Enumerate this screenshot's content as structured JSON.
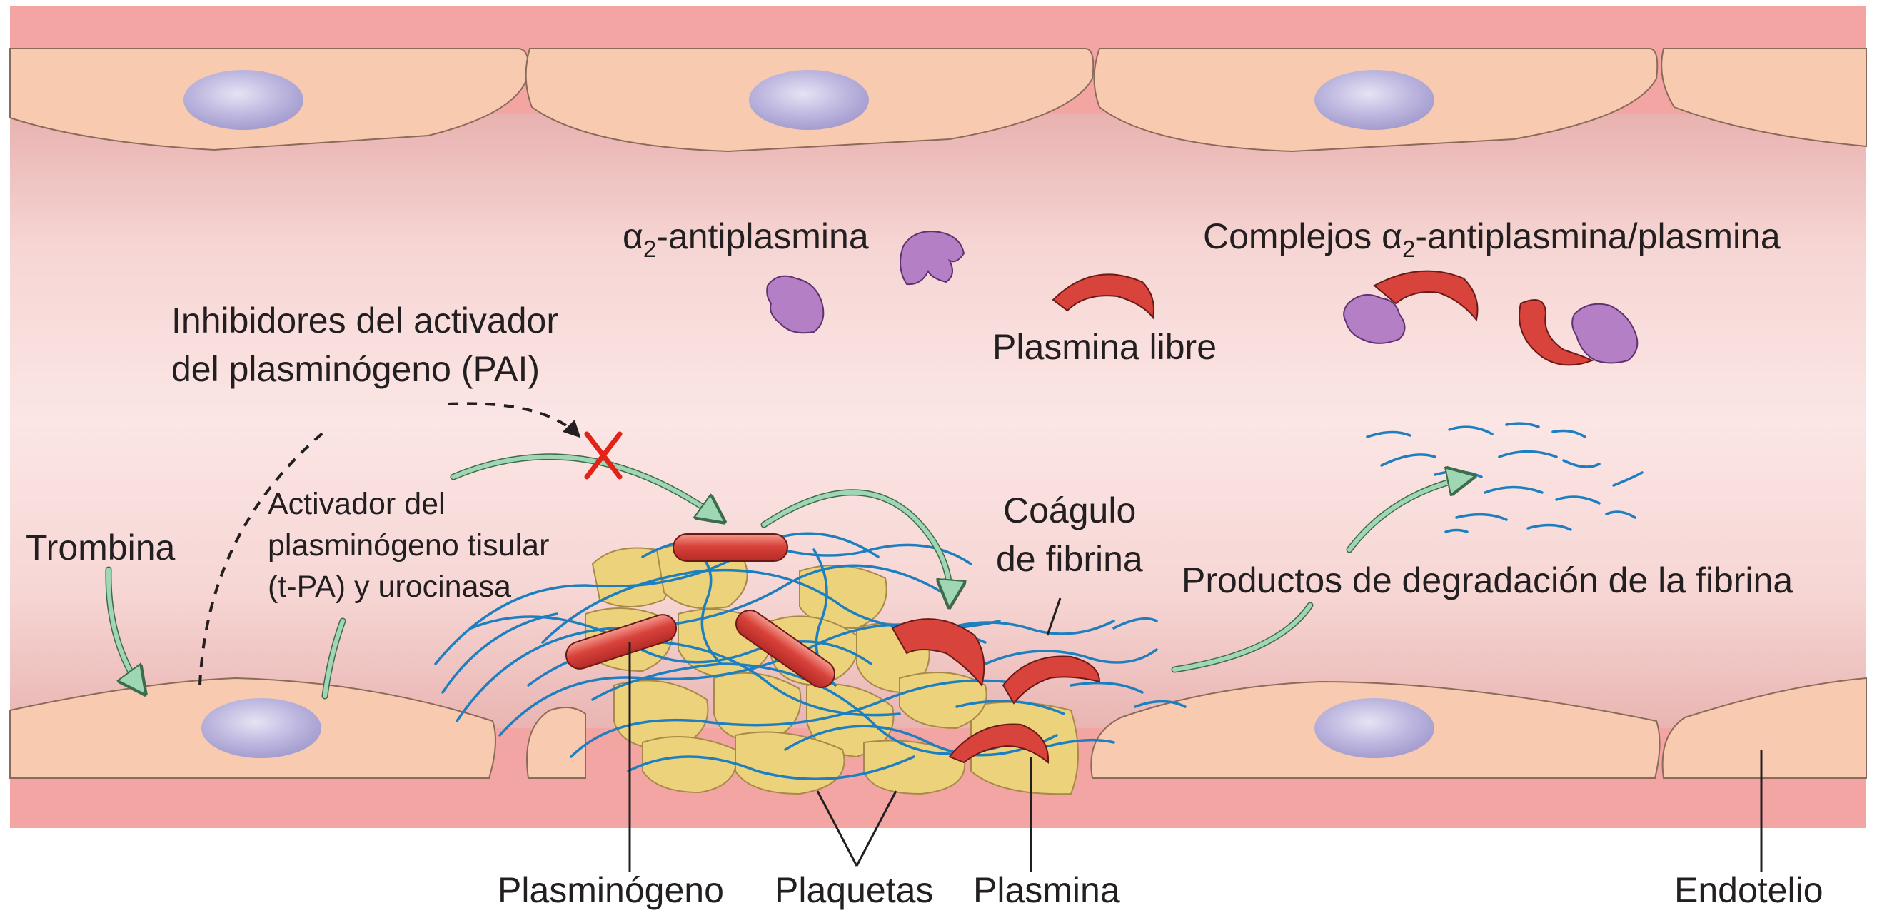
{
  "labels": {
    "alpha_antiplasmin": {
      "alpha": "α",
      "sub": "2",
      "rest": "-antiplasmina"
    },
    "complexes": {
      "prefix": "Complejos ",
      "alpha": "α",
      "sub": "2",
      "rest": "-antiplasmina/plasmina"
    },
    "free_plasmin": "Plasmina libre",
    "pai_line1": "Inhibidores del activador",
    "pai_line2": "del plasminógeno (PAI)",
    "thrombin": "Trombina",
    "tpa_line1": "Activador del",
    "tpa_line2": "plasminógeno tisular",
    "tpa_line3": "(t-PA) y urocinasa",
    "clot_line1": "Coágulo",
    "clot_line2": "de fibrina",
    "fdp": "Productos de degradación de la fibrina",
    "plasminogen": "Plasminógeno",
    "platelets": "Plaquetas",
    "plasmin": "Plasmina",
    "endothelium": "Endotelio"
  },
  "colors": {
    "vessel_wall": "#f2a5a2",
    "lumen": "#f8dede",
    "endothelial_cell": "#f8cbb0",
    "nucleus": "#b9b3dc",
    "platelet": "#ecd27a",
    "fibrin": "#1e7fc0",
    "plasmin": "#d8433b",
    "antiplasmin": "#b57fc6",
    "arrow": "#9fd6b3",
    "inhibition_x": "#e2231a"
  }
}
